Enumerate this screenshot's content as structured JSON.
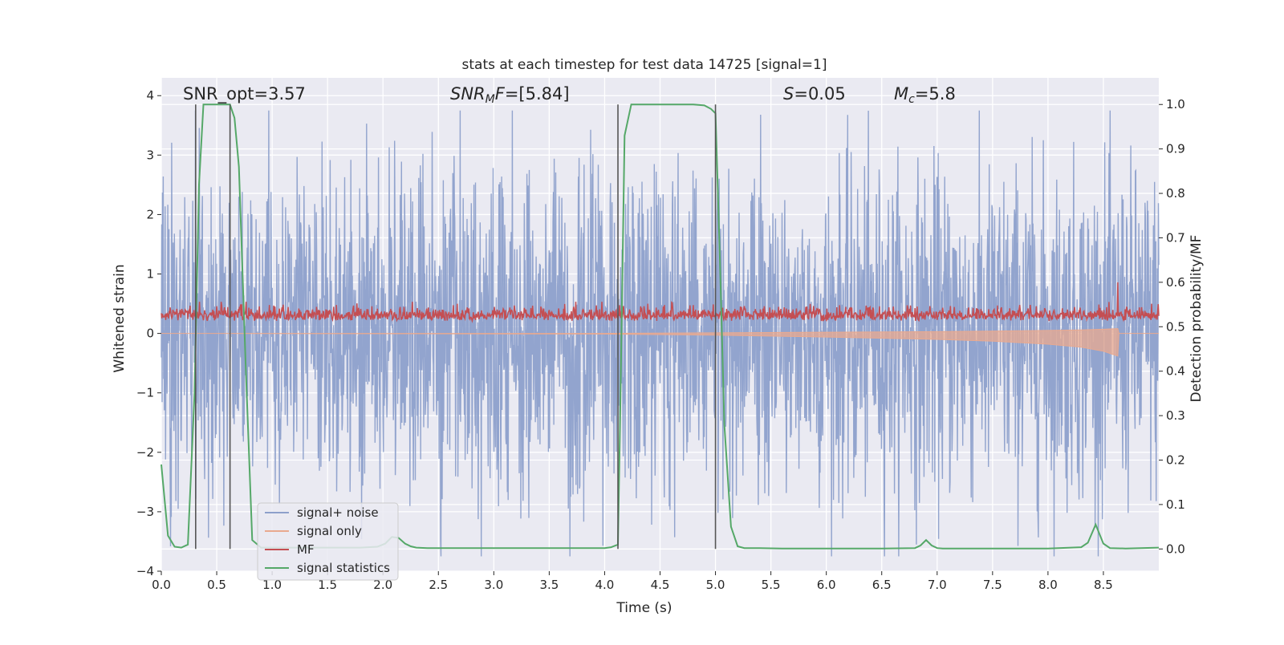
{
  "chart_data": {
    "type": "line",
    "title": "stats at each timestep for test data 14725 [signal=1]",
    "xlabel": "Time (s)",
    "ylabel": "Whitened strain",
    "y2label": "Detection probability/MF",
    "xlim": [
      0.0,
      9.0
    ],
    "ylim": [
      -4.0,
      4.3
    ],
    "y2lim": [
      -0.05,
      1.06
    ],
    "xticks": [
      "0.0",
      "0.5",
      "1.0",
      "1.5",
      "2.0",
      "2.5",
      "3.0",
      "3.5",
      "4.0",
      "4.5",
      "5.0",
      "5.5",
      "6.0",
      "6.5",
      "7.0",
      "7.5",
      "8.0",
      "8.5"
    ],
    "yticks": [
      "4",
      "3",
      "2",
      "1",
      "0",
      "−1",
      "−2",
      "−3",
      "−4"
    ],
    "y2ticks": [
      "1.0",
      "0.9",
      "0.8",
      "0.7",
      "0.6",
      "0.5",
      "0.4",
      "0.3",
      "0.2",
      "0.1",
      "0.0"
    ],
    "grid": true,
    "legend_position": "lower-left",
    "annotations": {
      "snr_opt": "SNR_opt=3.57",
      "snr_mf": "SNR_MF=[5.84]",
      "s_value": "S=0.05",
      "mc_value": "M_c=5.8"
    },
    "vertical_lines_x": [
      0.31,
      0.62,
      4.12,
      5.0
    ],
    "series": [
      {
        "name": "signal+ noise",
        "color": "#8da0cb",
        "axis": "left",
        "description_values": "dense noise, approx uniform band between -3.6 and 3.6 with std ~1.4"
      },
      {
        "name": "signal only",
        "color": "#e9a98f",
        "axis": "left",
        "envelope": {
          "x": [
            0.0,
            4.0,
            5.0,
            6.0,
            7.0,
            7.5,
            8.0,
            8.3,
            8.5,
            8.63,
            8.64,
            9.0
          ],
          "lower": [
            0.0,
            -0.01,
            -0.03,
            -0.06,
            -0.1,
            -0.13,
            -0.18,
            -0.23,
            -0.3,
            -0.38,
            0.0,
            0.0
          ],
          "upper": [
            0.0,
            0.0,
            0.01,
            0.02,
            0.03,
            0.04,
            0.05,
            0.06,
            0.07,
            0.08,
            0.0,
            0.0
          ]
        }
      },
      {
        "name": "MF",
        "color": "#c44e52",
        "axis": "right",
        "description_values": "fluctuates between 0.5 and 0.55, spike to 0.6 at x=8.63",
        "spike": {
          "x": 8.63,
          "y": 0.6
        }
      },
      {
        "name": "signal statistics",
        "color": "#55a868",
        "axis": "right",
        "x": [
          0.0,
          0.06,
          0.12,
          0.18,
          0.24,
          0.3,
          0.34,
          0.38,
          0.42,
          0.48,
          0.56,
          0.62,
          0.66,
          0.7,
          0.76,
          0.82,
          0.9,
          1.0,
          1.2,
          1.5,
          1.8,
          1.95,
          2.02,
          2.08,
          2.14,
          2.2,
          2.25,
          2.3,
          2.4,
          2.6,
          3.0,
          3.5,
          4.0,
          4.06,
          4.12,
          4.14,
          4.18,
          4.24,
          4.3,
          4.4,
          4.6,
          4.8,
          4.9,
          4.96,
          5.0,
          5.04,
          5.08,
          5.14,
          5.2,
          5.26,
          5.4,
          5.6,
          6.0,
          6.5,
          6.8,
          6.85,
          6.9,
          6.95,
          7.0,
          7.05,
          7.5,
          8.0,
          8.3,
          8.36,
          8.43,
          8.5,
          8.56,
          8.7,
          9.0
        ],
        "values": [
          0.19,
          0.03,
          0.005,
          0.003,
          0.01,
          0.35,
          0.82,
          1.0,
          1.0,
          1.0,
          1.0,
          1.0,
          0.97,
          0.86,
          0.42,
          0.02,
          0.003,
          0.003,
          0.003,
          0.003,
          0.003,
          0.005,
          0.012,
          0.027,
          0.025,
          0.012,
          0.006,
          0.003,
          0.002,
          0.002,
          0.002,
          0.002,
          0.002,
          0.004,
          0.01,
          0.3,
          0.93,
          1.0,
          1.0,
          1.0,
          1.0,
          1.0,
          0.998,
          0.99,
          0.98,
          0.65,
          0.28,
          0.05,
          0.006,
          0.002,
          0.002,
          0.001,
          0.001,
          0.001,
          0.002,
          0.008,
          0.02,
          0.008,
          0.002,
          0.001,
          0.001,
          0.001,
          0.004,
          0.014,
          0.055,
          0.012,
          0.002,
          0.001,
          0.003
        ]
      }
    ]
  }
}
